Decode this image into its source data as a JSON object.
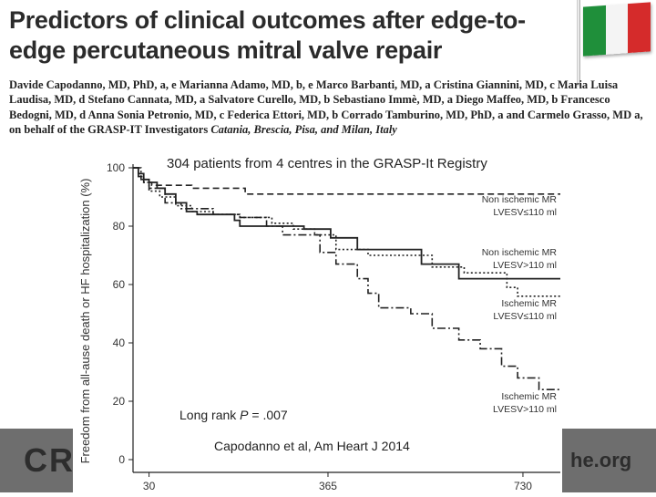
{
  "slide": {
    "title": "Predictors of clinical outcomes after edge-to-edge percutaneous mitral valve repair",
    "authors": "Davide Capodanno, MD, PhD, a, e Marianna Adamo, MD, b, e Marco Barbanti, MD, a Cristina Giannini, MD, c Maria Luisa Laudisa, MD, d Stefano Cannata, MD, a Salvatore Curello, MD, b Sebastiano Immè, MD, a Diego Maffeo, MD, b Francesco Bedogni, MD, d Anna Sonia Petronio, MD, c Federica Ettori, MD, b Corrado Tamburino, MD, PhD, a and Carmelo Grasso, MD a, on behalf of the GRASP-IT Investigators",
    "locations": "Catania, Brescia, Pisa, and Milan, Italy",
    "banner_logo": "CR",
    "banner_url": "he.org",
    "flag_colors": [
      "#1f8f3a",
      "#f4f4f4",
      "#d52b2b"
    ]
  },
  "chart_data": {
    "type": "line",
    "subtitle": "304 patients from 4 centres in the GRASP-It Registry",
    "ylabel": "Freedom from all-ause death or HF hospitalization (%)",
    "xlabel": "",
    "xlim": [
      0,
      800
    ],
    "ylim": [
      0,
      100
    ],
    "x_ticks": [
      30,
      365,
      730
    ],
    "y_ticks": [
      0,
      20,
      40,
      60,
      80,
      100
    ],
    "annotation": "Long rank P = .007",
    "citation": "Capodanno et al, Am Heart J 2014",
    "series": [
      {
        "name": "Non ischemic MR LVESV≤110 ml",
        "label_lines": [
          "Non ischemic MR",
          "LVESV≤110 ml"
        ],
        "style": "dashed",
        "x": [
          0,
          10,
          20,
          35,
          60,
          100,
          110,
          200,
          210,
          800
        ],
        "y": [
          100,
          97,
          95,
          94,
          94,
          94,
          93,
          93,
          91,
          91
        ]
      },
      {
        "name": "Non ischemic MR LVESV>110 ml",
        "label_lines": [
          "Non ischemic MR",
          "LVESV>110 ml"
        ],
        "style": "solid",
        "x": [
          0,
          10,
          20,
          30,
          45,
          60,
          80,
          100,
          120,
          160,
          190,
          200,
          280,
          320,
          370,
          420,
          500,
          540,
          610,
          800
        ],
        "y": [
          100,
          98,
          96,
          95,
          93,
          91,
          88,
          85,
          84,
          84,
          82,
          80,
          80,
          79,
          76,
          72,
          72,
          67,
          62,
          62
        ]
      },
      {
        "name": "Ischemic MR LVESV≤110 ml",
        "label_lines": [
          "Ischemic MR",
          "LVESV≤110 ml"
        ],
        "style": "dotted",
        "x": [
          0,
          10,
          20,
          30,
          50,
          80,
          110,
          150,
          200,
          260,
          300,
          340,
          380,
          440,
          520,
          560,
          620,
          700,
          720,
          800
        ],
        "y": [
          100,
          97,
          95,
          92,
          90,
          87,
          85,
          84,
          83,
          81,
          79,
          77,
          72,
          70,
          70,
          66,
          64,
          59,
          56,
          56
        ]
      },
      {
        "name": "Ischemic MR LVESV>110 ml",
        "label_lines": [
          "Ischemic MR",
          "LVESV>110 ml"
        ],
        "style": "dashdot",
        "x": [
          0,
          15,
          30,
          60,
          90,
          150,
          200,
          250,
          280,
          350,
          380,
          420,
          440,
          460,
          480,
          520,
          560,
          610,
          650,
          690,
          720,
          760,
          800
        ],
        "y": [
          100,
          96,
          93,
          88,
          86,
          84,
          83,
          80,
          77,
          71,
          67,
          62,
          57,
          52,
          52,
          50,
          45,
          41,
          38,
          32,
          28,
          24,
          24
        ]
      }
    ]
  }
}
